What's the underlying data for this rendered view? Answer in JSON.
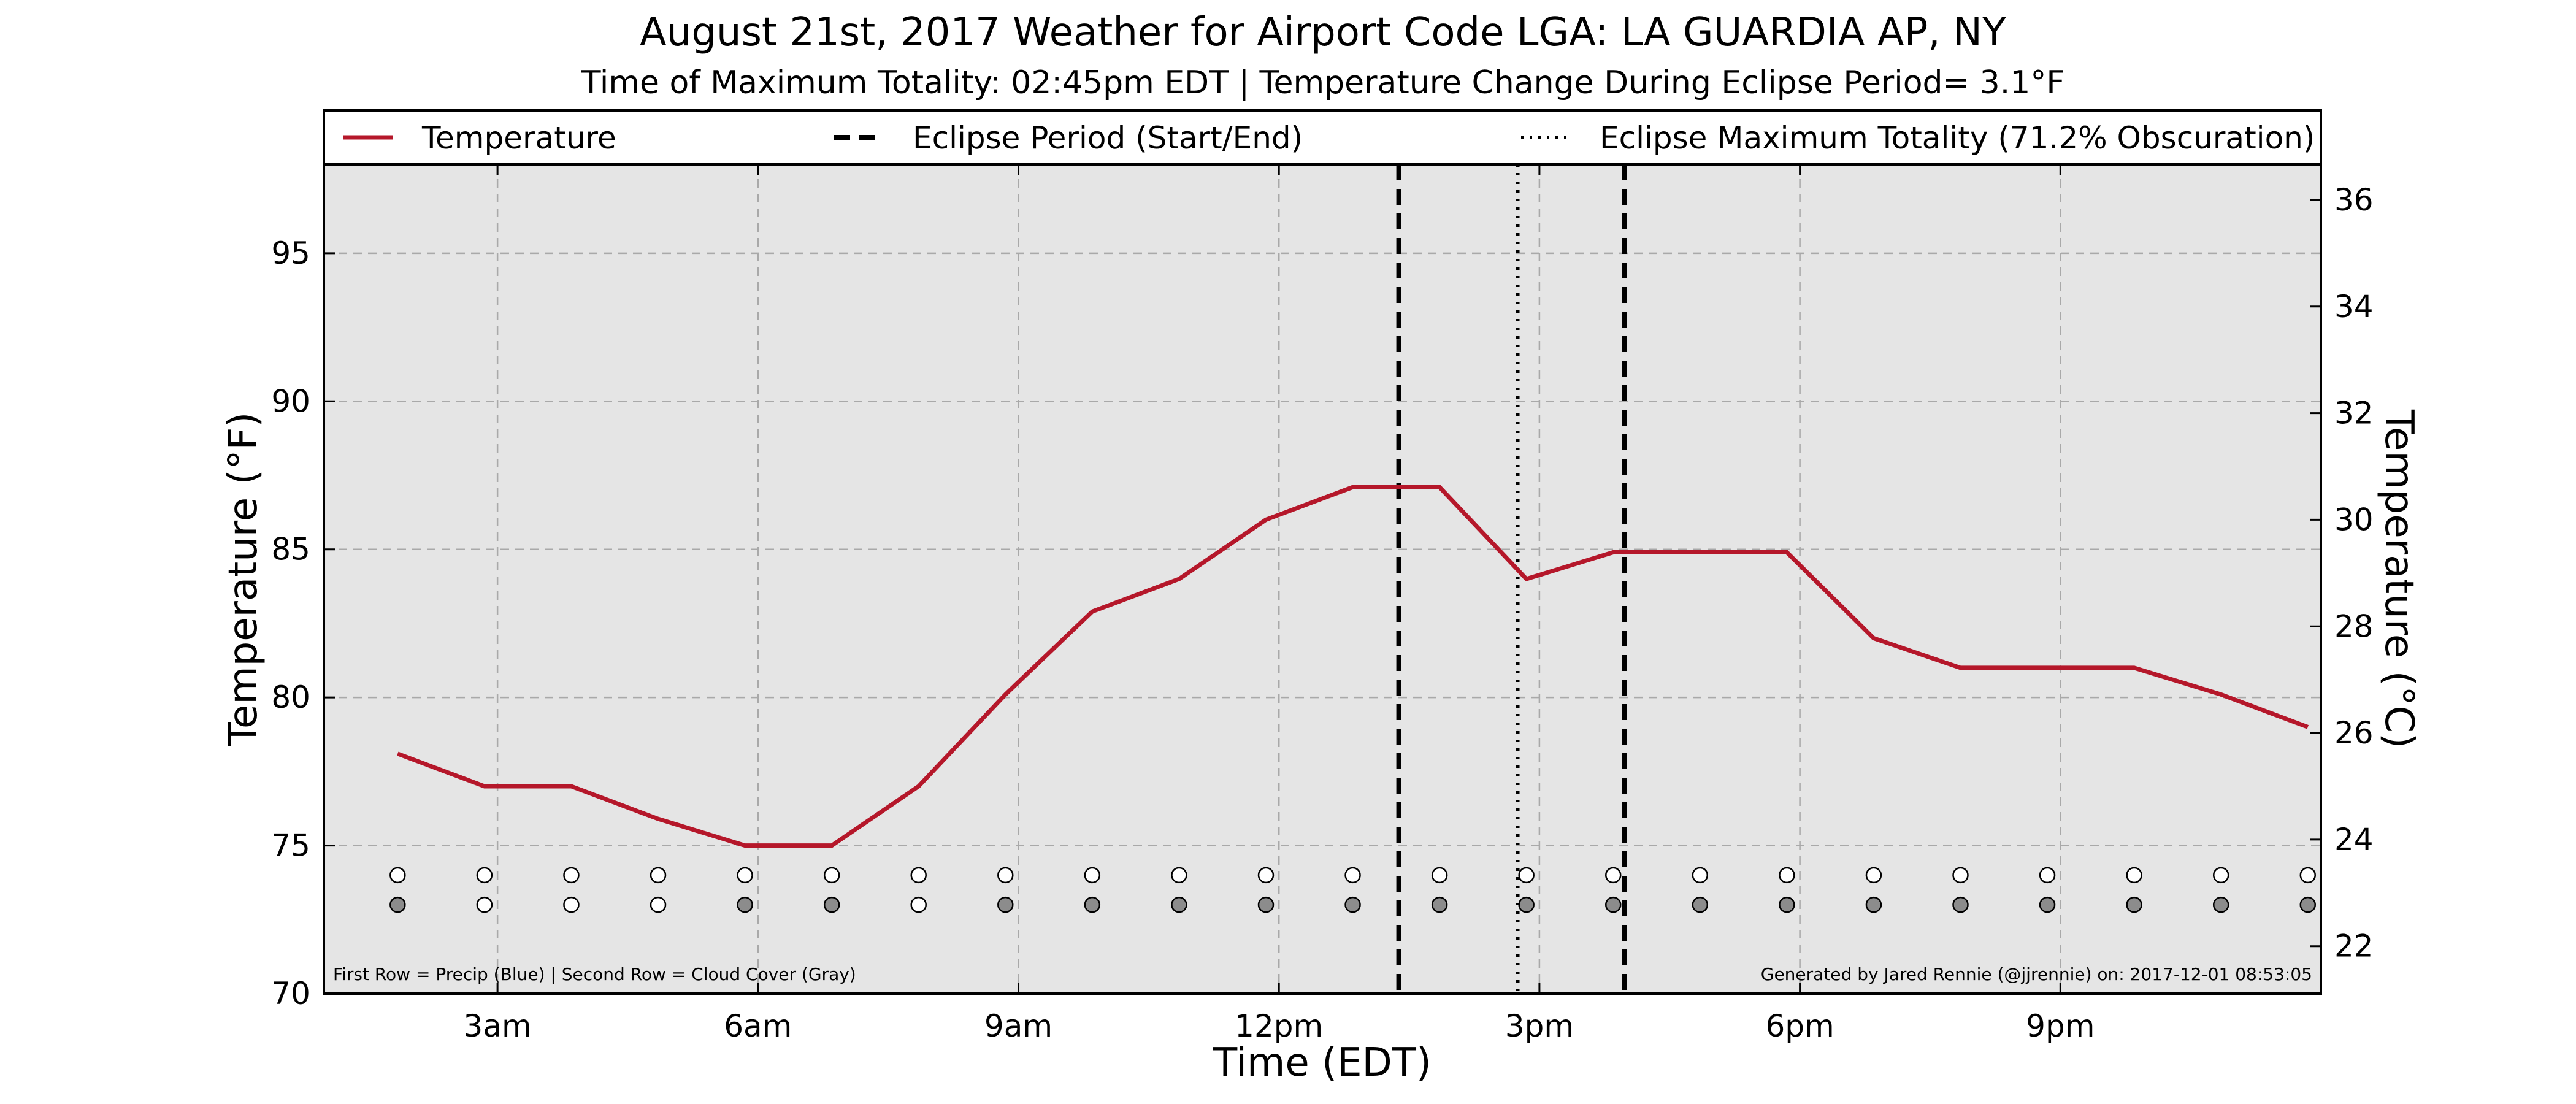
{
  "chart_data": {
    "type": "line",
    "title": "August 21st, 2017 Weather for Airport Code LGA: LA GUARDIA AP, NY",
    "subtitle": "Time of Maximum Totality: 02:45pm EDT | Temperature Change During Eclipse Period= 3.1°F",
    "xlabel": "Time (EDT)",
    "ylabel": "Temperature (°F)",
    "ylabel_right": "Temperature (°C)",
    "xlim": [
      1,
      24
    ],
    "ylim": [
      70,
      98
    ],
    "ylim_right_c": [
      21.1,
      36.7
    ],
    "x_ticks": [
      {
        "x": 3,
        "label": "3am"
      },
      {
        "x": 6,
        "label": "6am"
      },
      {
        "x": 9,
        "label": "9am"
      },
      {
        "x": 12,
        "label": "12pm"
      },
      {
        "x": 15,
        "label": "3pm"
      },
      {
        "x": 18,
        "label": "6pm"
      },
      {
        "x": 21,
        "label": "9pm"
      }
    ],
    "y_ticks_left": [
      70,
      75,
      80,
      85,
      90,
      95
    ],
    "y_ticks_right": [
      22,
      24,
      26,
      28,
      30,
      32,
      34,
      36
    ],
    "grid": true,
    "legend": [
      {
        "label": "Temperature",
        "style": "solid"
      },
      {
        "label": "Eclipse Period (Start/End)",
        "style": "dashed"
      },
      {
        "label": "Eclipse Maximum Totality (71.2% Obscuration)",
        "style": "dotted"
      }
    ],
    "legend_position": "top",
    "series": [
      {
        "name": "Temperature",
        "color": "#b5172a",
        "x": [
          1.85,
          2.85,
          3.85,
          4.85,
          5.85,
          6.85,
          7.85,
          8.85,
          9.85,
          10.85,
          11.85,
          12.85,
          13.85,
          14.85,
          15.85,
          16.85,
          17.85,
          18.85,
          19.85,
          20.85,
          21.85,
          22.85,
          23.85
        ],
        "y": [
          78.1,
          77.0,
          77.0,
          75.9,
          75.0,
          75.0,
          77.0,
          80.1,
          82.9,
          84.0,
          86.0,
          87.1,
          87.1,
          84.0,
          84.9,
          84.9,
          84.9,
          82.0,
          81.0,
          81.0,
          81.0,
          80.1,
          79.0
        ]
      }
    ],
    "eclipse_start_x": 13.38,
    "eclipse_end_x": 15.98,
    "eclipse_max_x": 14.75,
    "marker_rows": {
      "x": [
        1.85,
        2.85,
        3.85,
        4.85,
        5.85,
        6.85,
        7.85,
        8.85,
        9.85,
        10.85,
        11.85,
        12.85,
        13.85,
        14.85,
        15.85,
        16.85,
        17.85,
        18.85,
        19.85,
        20.85,
        21.85,
        22.85,
        23.85
      ],
      "precip_y": 74,
      "cloud_y": 73,
      "precip": [
        0,
        0,
        0,
        0,
        0,
        0,
        0,
        0,
        0,
        0,
        0,
        0,
        0,
        0,
        0,
        0,
        0,
        0,
        0,
        0,
        0,
        0,
        0
      ],
      "cloud": [
        1,
        0,
        0,
        0,
        1,
        1,
        0,
        1,
        1,
        1,
        1,
        1,
        1,
        1,
        1,
        1,
        1,
        1,
        1,
        1,
        1,
        1,
        1
      ]
    },
    "footer_left": "First Row = Precip (Blue) | Second Row = Cloud Cover (Gray)",
    "footer_right": "Generated by Jared Rennie (@jjrennie) on: 2017-12-01 08:53:05",
    "colors": {
      "temperature": "#b5172a",
      "plot_background": "#e5e5e5",
      "grid": "#a9a9a9",
      "cloud_fill": "#8c8c8c",
      "empty_marker": "#ffffff"
    }
  }
}
